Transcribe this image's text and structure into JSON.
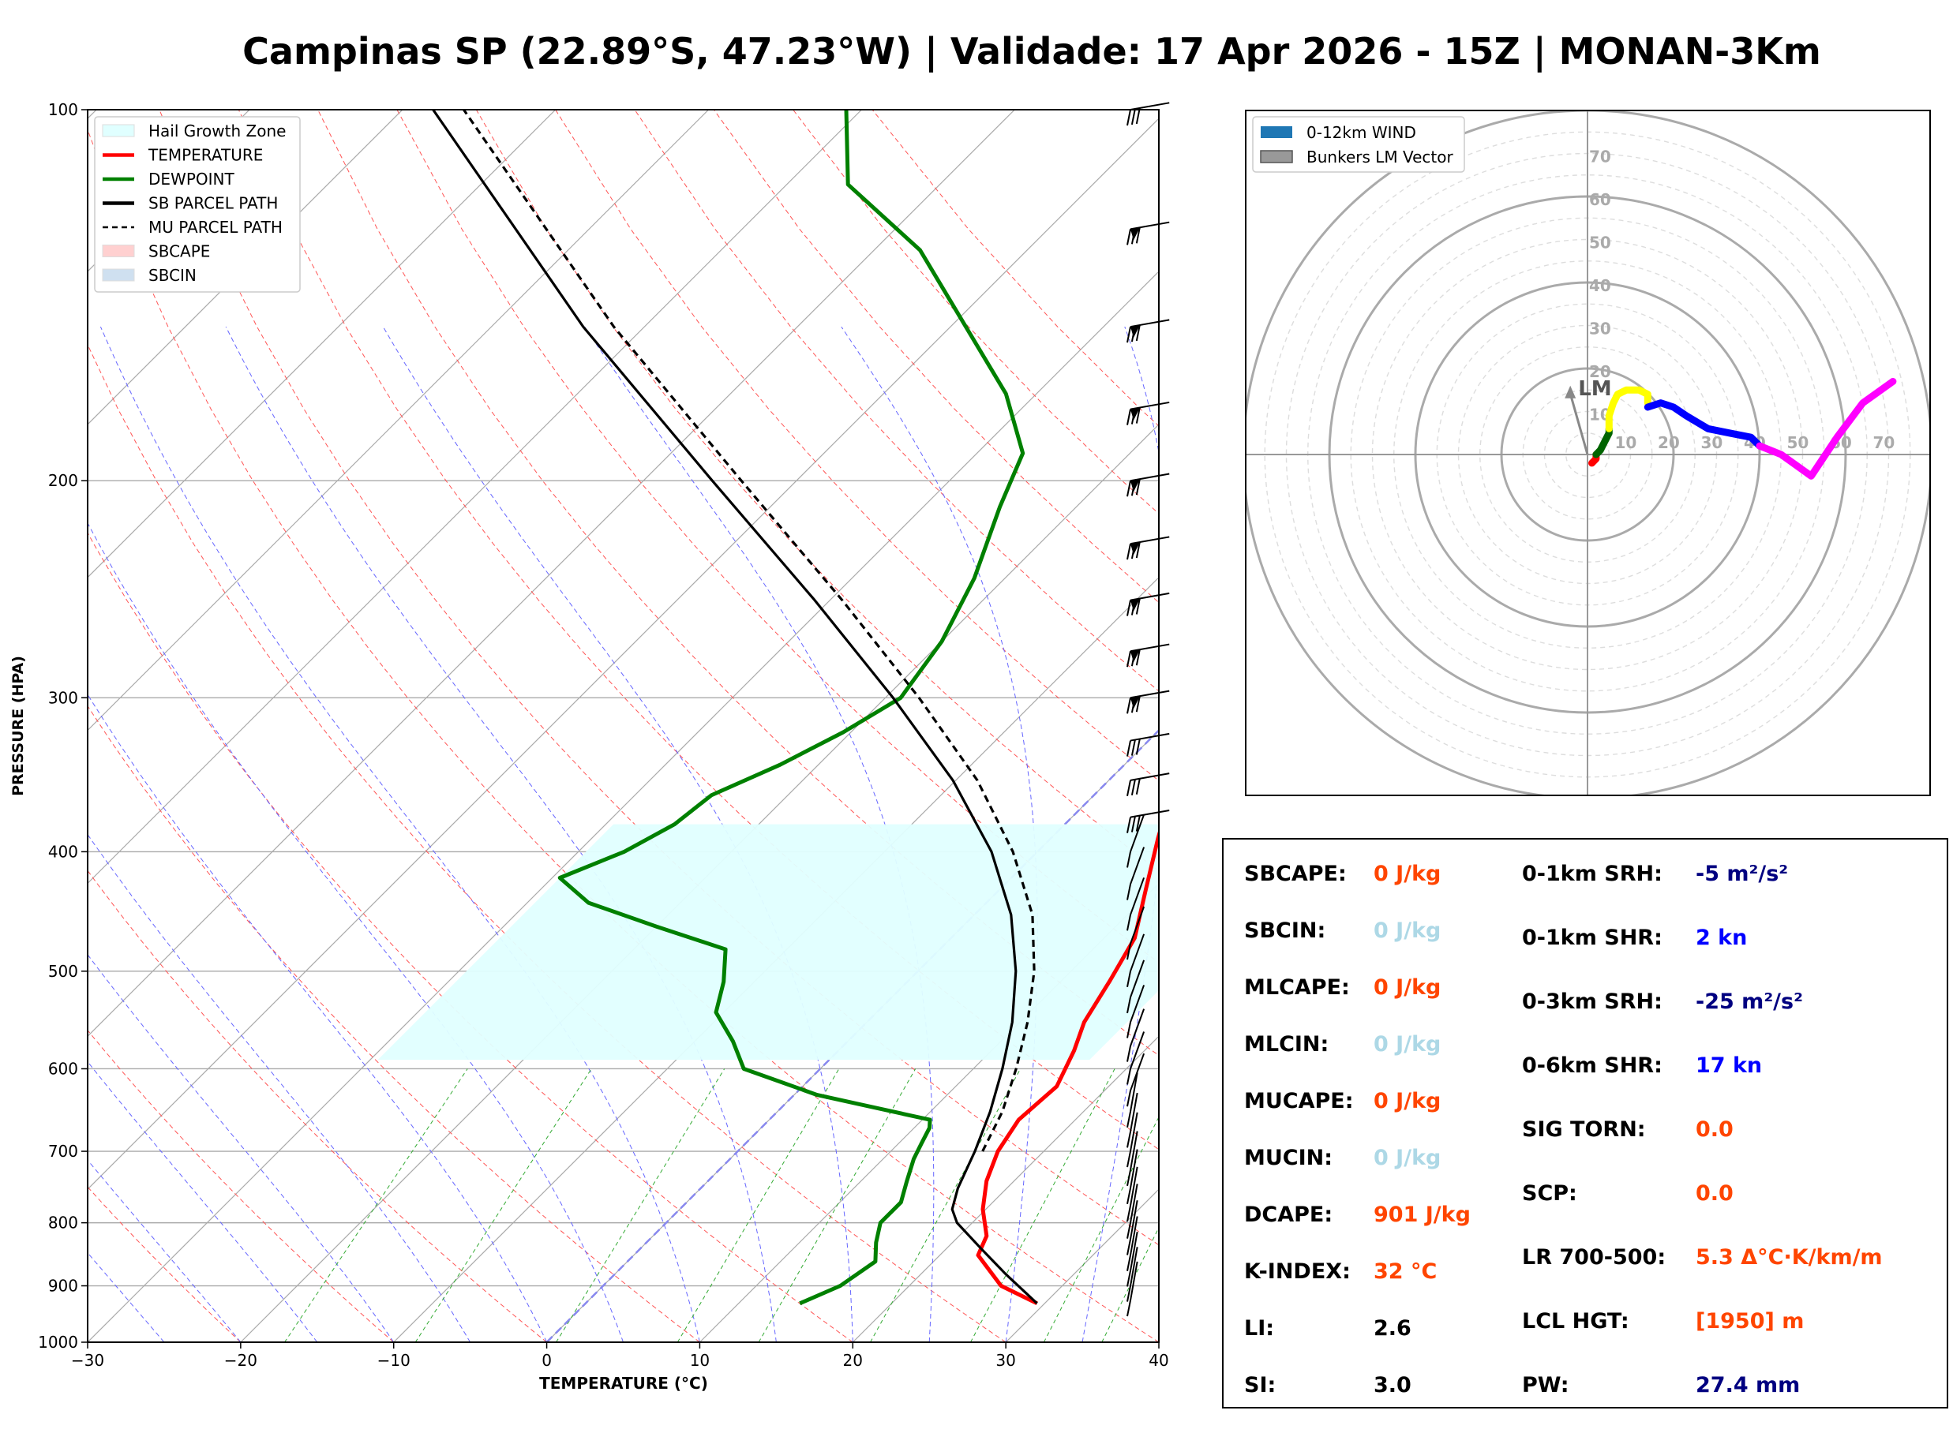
{
  "title": "Campinas SP (22.89°S, 47.23°W) | Validade: 17 Apr 2026 - 15Z | MONAN-3Km",
  "skewt": {
    "xlabel": "TEMPERATURE (°C)",
    "ylabel": "PRESSURE (HPA)",
    "x_ticks": [
      "−30",
      "−20",
      "−10",
      "0",
      "10",
      "20",
      "30",
      "40"
    ],
    "y_ticks": [
      "100",
      "200",
      "300",
      "400",
      "500",
      "600",
      "700",
      "800",
      "900",
      "1000"
    ],
    "legend": [
      {
        "label": "Hail Growth Zone",
        "style": "patch",
        "color": "#e0ffff"
      },
      {
        "label": "TEMPERATURE",
        "style": "line",
        "color": "#ff0000"
      },
      {
        "label": "DEWPOINT",
        "style": "line",
        "color": "#008000"
      },
      {
        "label": "SB PARCEL PATH",
        "style": "line",
        "color": "#000000"
      },
      {
        "label": "MU PARCEL PATH",
        "style": "dashed",
        "color": "#000000"
      },
      {
        "label": "SBCAPE",
        "style": "patch",
        "color": "#ffd0d0"
      },
      {
        "label": "SBCIN",
        "style": "patch",
        "color": "#cfe0f0"
      }
    ]
  },
  "hodograph": {
    "legend": [
      {
        "label": "0-12km WIND",
        "color": "#1f77b4"
      },
      {
        "label": "Bunkers LM Vector",
        "color": "#999999"
      }
    ],
    "ring_labels": [
      "10",
      "20",
      "30",
      "40",
      "50",
      "60",
      "70"
    ],
    "lm_label": "LM"
  },
  "stats": {
    "left": [
      {
        "label": "SBCAPE:",
        "value": "0 J/kg",
        "color": "#ff4500"
      },
      {
        "label": "SBCIN:",
        "value": "0 J/kg",
        "color": "#add8e6"
      },
      {
        "label": "MLCAPE:",
        "value": "0 J/kg",
        "color": "#ff4500"
      },
      {
        "label": "MLCIN:",
        "value": "0 J/kg",
        "color": "#add8e6"
      },
      {
        "label": "MUCAPE:",
        "value": "0 J/kg",
        "color": "#ff4500"
      },
      {
        "label": "MUCIN:",
        "value": "0 J/kg",
        "color": "#add8e6"
      },
      {
        "label": "DCAPE:",
        "value": "901 J/kg",
        "color": "#ff4500"
      },
      {
        "label": "K-INDEX:",
        "value": "32 °C",
        "color": "#ff4500"
      },
      {
        "label": "LI:",
        "value": "2.6",
        "color": "#000000"
      },
      {
        "label": "SI:",
        "value": "3.0",
        "color": "#000000"
      }
    ],
    "right": [
      {
        "label": "0-1km SRH:",
        "value": "-5 m²/s²",
        "color": "#000080"
      },
      {
        "label": "0-1km SHR:",
        "value": "2 kn",
        "color": "#0000ff"
      },
      {
        "label": "0-3km SRH:",
        "value": "-25 m²/s²",
        "color": "#000080"
      },
      {
        "label": "0-6km SHR:",
        "value": "17 kn",
        "color": "#0000ff"
      },
      {
        "label": "SIG TORN:",
        "value": "0.0",
        "color": "#ff4500"
      },
      {
        "label": "SCP:",
        "value": "0.0",
        "color": "#ff4500"
      },
      {
        "label": "LR 700-500:",
        "value": "5.3 Δ°C·K/km/m",
        "color": "#ff4500"
      },
      {
        "label": "LCL HGT:",
        "value": "[1950] m",
        "color": "#ff4500"
      },
      {
        "label": "PW:",
        "value": "27.4 mm",
        "color": "#000080"
      }
    ]
  },
  "chart_data": [
    {
      "type": "line",
      "title": "Campinas SP (22.89°S, 47.23°W) | Validade: 17 Apr 2026 - 15Z | MONAN-3Km",
      "xlabel": "TEMPERATURE (°C)",
      "ylabel": "PRESSURE (HPA)",
      "xlim": [
        -30,
        40
      ],
      "ylim": [
        1000,
        100
      ],
      "y_scale": "log",
      "skew": "45°",
      "series": [
        {
          "name": "TEMPERATURE",
          "color": "#ff0000",
          "p": [
            930,
            900,
            850,
            820,
            780,
            740,
            700,
            660,
            620,
            580,
            550,
            510,
            470,
            430,
            390,
            360,
            320,
            280,
            260,
            230,
            210,
            180,
            160,
            140,
            120,
            100
          ],
          "x": [
            29.5,
            26.0,
            22.5,
            21.8,
            19.8,
            18.2,
            17.0,
            16.3,
            16.6,
            15.4,
            14.2,
            13.2,
            12.0,
            9.6,
            7.0,
            5.0,
            2.6,
            -0.6,
            -2.2,
            -3.2,
            -3.5,
            -6.5,
            -10.0,
            -16.0,
            -19.0,
            -22.0
          ]
        },
        {
          "name": "DEWPOINT",
          "color": "#008000",
          "p": [
            930,
            900,
            860,
            830,
            800,
            770,
            740,
            710,
            690,
            670,
            660,
            630,
            600,
            570,
            540,
            510,
            480,
            460,
            440,
            420,
            400,
            380,
            360,
            340,
            320,
            300,
            270,
            240,
            210,
            190,
            170,
            150,
            130,
            115,
            100
          ],
          "x": [
            14.0,
            15.5,
            16.2,
            15.0,
            14.0,
            14.0,
            13.0,
            12.0,
            11.5,
            11.0,
            10.5,
            1.5,
            -5.0,
            -7.5,
            -10.5,
            -12.0,
            -14.0,
            -20.0,
            -26.0,
            -29.5,
            -27.0,
            -25.5,
            -25.0,
            -22.5,
            -20.5,
            -19.0,
            -20.0,
            -22.0,
            -25.0,
            -27.0,
            -32.0,
            -39.0,
            -47.0,
            -56.0,
            -61.0
          ]
        },
        {
          "name": "SB PARCEL PATH",
          "color": "#000000",
          "dash": "solid",
          "p": [
            930,
            880,
            840,
            800,
            780,
            750,
            700,
            650,
            600,
            550,
            500,
            450,
            400,
            350,
            300,
            250,
            200,
            150,
            100
          ],
          "x": [
            29.5,
            25.5,
            22.3,
            19.0,
            17.8,
            16.8,
            15.5,
            13.9,
            11.9,
            9.5,
            6.4,
            2.4,
            -3.0,
            -10.2,
            -19.5,
            -31.0,
            -45.5,
            -64.0,
            -88.0
          ]
        },
        {
          "name": "MU PARCEL PATH",
          "color": "#000000",
          "dash": "dashed",
          "p": [
            700,
            650,
            600,
            550,
            500,
            450,
            400,
            350,
            300,
            250,
            200,
            150,
            100
          ],
          "x": [
            16.0,
            14.7,
            12.8,
            10.5,
            7.6,
            3.8,
            -1.6,
            -8.6,
            -17.8,
            -29.2,
            -43.6,
            -62.0,
            -86.0
          ]
        }
      ],
      "hail_growth_zone": {
        "p_top": 380,
        "p_bottom": 590,
        "x_left": -29.5,
        "x_right": 17.0
      },
      "wind_barbs_p": [
        100,
        125,
        150,
        175,
        200,
        225,
        250,
        275,
        300,
        325,
        350,
        375,
        400,
        425,
        450,
        475,
        500,
        525,
        550,
        575,
        600,
        625,
        650,
        675,
        700,
        725,
        750,
        775,
        800,
        825,
        850,
        875,
        900,
        925
      ]
    },
    {
      "type": "scatter",
      "title": "0-12km WIND",
      "rings_kn": [
        10,
        20,
        30,
        40,
        50,
        60,
        70
      ],
      "series": [
        {
          "name": "0-1km",
          "color": "#ff0000",
          "u": [
            1,
            2,
            2
          ],
          "v": [
            -2,
            -1,
            0
          ]
        },
        {
          "name": "1-3km",
          "color": "#006400",
          "u": [
            2,
            3,
            4,
            5,
            5
          ],
          "v": [
            0,
            1,
            3,
            5,
            6
          ]
        },
        {
          "name": "3-6km",
          "color": "#ffff00",
          "u": [
            5,
            5,
            6,
            7,
            9,
            12,
            14,
            14
          ],
          "v": [
            6,
            9,
            12,
            14,
            15,
            15,
            14,
            12
          ]
        },
        {
          "name": "6-9km",
          "color": "#0000ff",
          "u": [
            14,
            17,
            20,
            23,
            28,
            33,
            38,
            40
          ],
          "v": [
            11,
            12,
            11,
            9,
            6,
            5,
            4,
            2
          ]
        },
        {
          "name": "9-12km",
          "color": "#ff00ff",
          "u": [
            40,
            45,
            52,
            58,
            64,
            71
          ],
          "v": [
            2,
            0,
            -5,
            4,
            12,
            17
          ]
        }
      ],
      "bunkers_lm": {
        "u": -4,
        "v": 16
      }
    }
  ]
}
